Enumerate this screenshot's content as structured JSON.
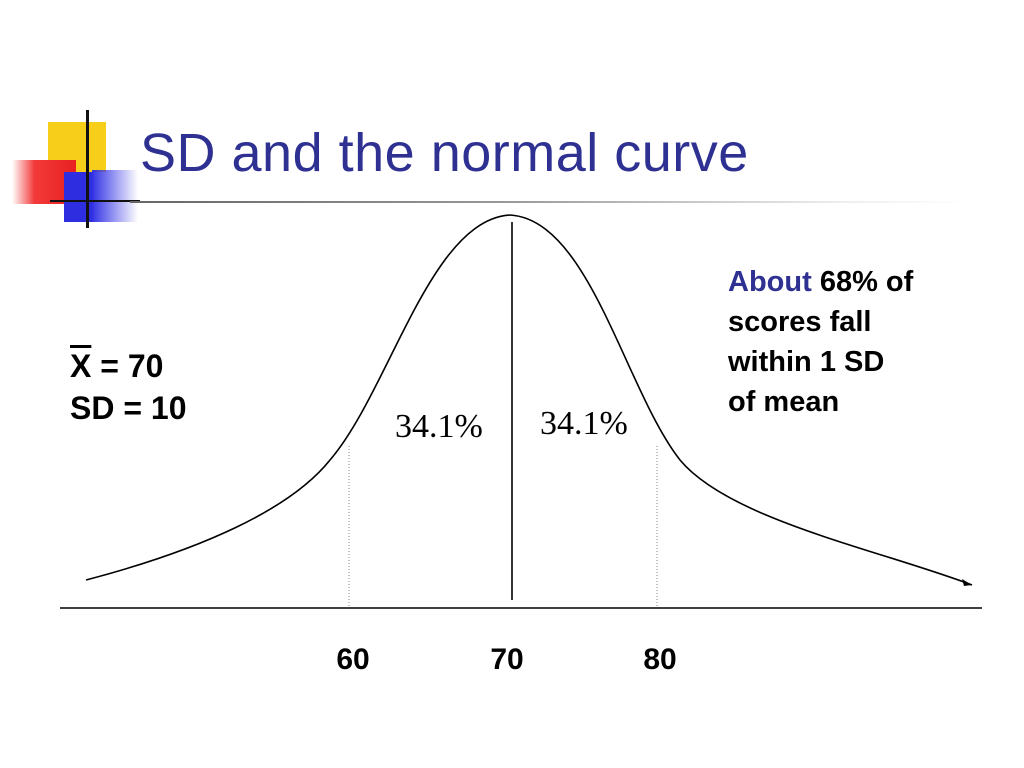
{
  "slide": {
    "title": "SD and the normal curve",
    "stats": {
      "mean_symbol": "X",
      "mean_value": "= 70",
      "sd_line": "SD = 10"
    },
    "note": {
      "accent_word": "About",
      "line1_rest": "68% of",
      "line2": "scores fall",
      "line3": "within 1 SD",
      "line4": "of mean"
    },
    "regions": {
      "left_percent": "34.1%",
      "right_percent": "34.1%"
    },
    "axis_ticks": [
      "60",
      "70",
      "80"
    ],
    "colors": {
      "title": "#2e3192",
      "accent": "#2e3192",
      "deco_yellow": "#f7cf1a",
      "deco_red": "#e82020",
      "deco_blue": "#2e2ee0"
    }
  }
}
